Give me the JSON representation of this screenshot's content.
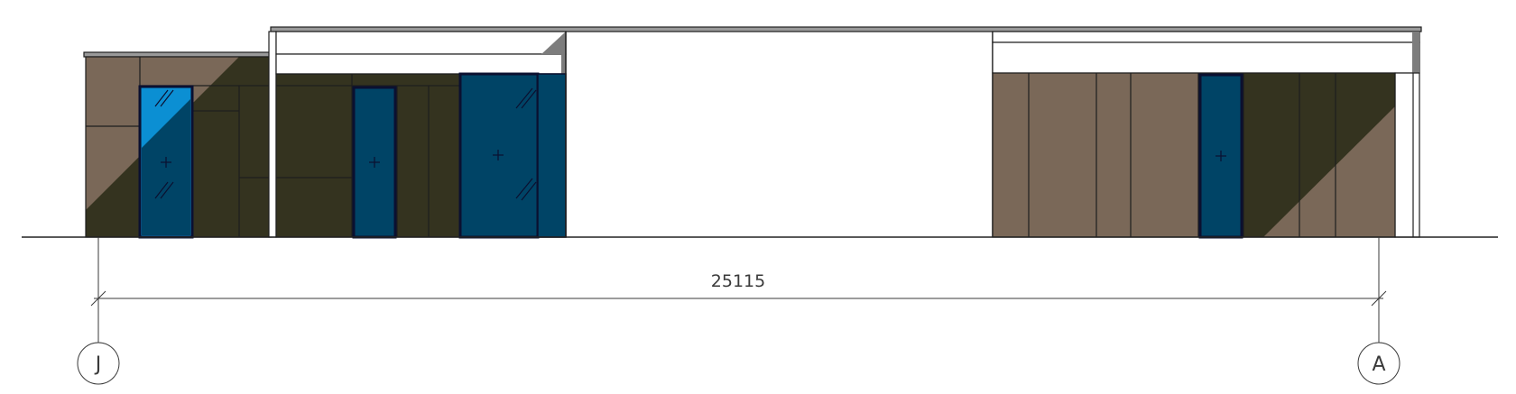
{
  "dimension": {
    "value": "25115"
  },
  "grid_lines": {
    "left": "J",
    "right": "A"
  },
  "colors": {
    "ground_line": "#222222",
    "cladding_brown": "#7a6858",
    "cladding_dark": "#34331f",
    "glazing": "#004466",
    "glazing_light": "#0a86c9",
    "roof_shadow": "#7d7d7d",
    "line": "#1e1e1e"
  }
}
